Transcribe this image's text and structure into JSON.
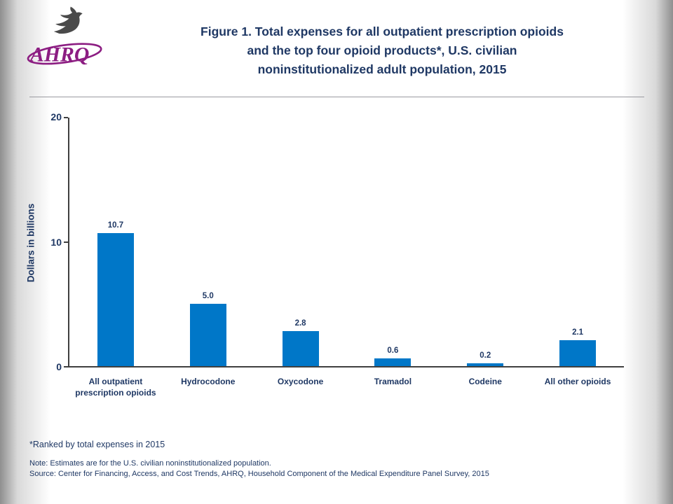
{
  "header": {
    "logo_text": "AHRQ",
    "logo_color": "#8C1D82",
    "title": "Figure 1. Total expenses for all outpatient prescription opioids\nand the top four opioid products*, U.S. civilian\nnoninstitutionalized adult population, 2015",
    "title_color": "#1F3864"
  },
  "chart_data": {
    "type": "bar",
    "title": "Figure 1. Total expenses for all outpatient prescription opioids and the top four opioid products*, U.S. civilian noninstitutionalized adult population, 2015",
    "categories": [
      "All outpatient\nprescription opioids",
      "Hydrocodone",
      "Oxycodone",
      "Tramadol",
      "Codeine",
      "All other opioids"
    ],
    "values": [
      10.7,
      5.0,
      2.8,
      0.6,
      0.2,
      2.1
    ],
    "value_labels": [
      "10.7",
      "5.0",
      "2.8",
      "0.6",
      "0.2",
      "2.1"
    ],
    "xlabel": "",
    "ylabel": "Dollars in billions",
    "ylim": [
      0,
      20
    ],
    "yticks": [
      0,
      10,
      20
    ],
    "grid": false,
    "legend": "none",
    "bar_color": "#0077C8",
    "label_color": "#1F3864"
  },
  "footer": {
    "footnote": "*Ranked by total expenses in 2015",
    "note": "Note: Estimates are for the U.S. civilian noninstitutionalized population.",
    "source": "Source: Center for Financing, Access, and Cost Trends, AHRQ, Household Component of the Medical Expenditure Panel Survey, 2015"
  }
}
